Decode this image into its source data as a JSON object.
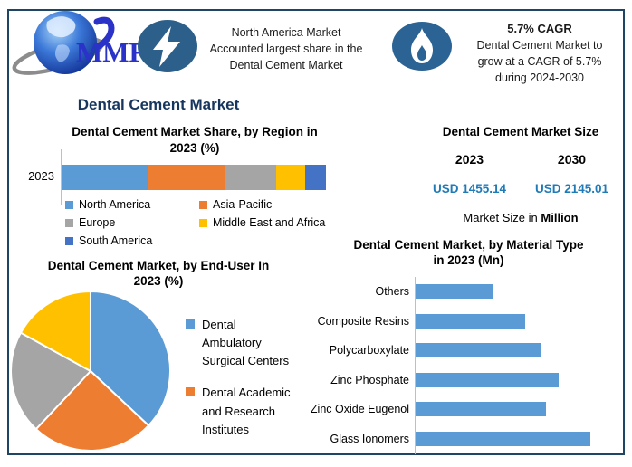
{
  "palette": {
    "blue": "#5B9BD5",
    "orange": "#ED7D31",
    "gray": "#A5A5A5",
    "yellow": "#FFC000",
    "dark_blue": "#4472C4",
    "frame": "#1F4564",
    "navy_title": "#17365D",
    "icon_bolt_bg": "#2C5F8A",
    "icon_flame_bg": "#2B6394"
  },
  "header": {
    "logo": {
      "text": "MMR"
    },
    "callout_market_share": {
      "icon": "lightning-icon",
      "lines": [
        "North America Market",
        "Accounted largest share in the",
        "Dental Cement Market"
      ]
    },
    "callout_cagr": {
      "icon": "flame-icon",
      "title": "5.7% CAGR",
      "lines": [
        "Dental Cement Market to",
        "grow at a CAGR of 5.7%",
        "during 2024-2030"
      ]
    }
  },
  "page_title": "Dental Cement Market",
  "market_size_panel": {
    "title": "Dental Cement Market Size",
    "columns": [
      {
        "year": "2023",
        "value": "USD 1455.14"
      },
      {
        "year": "2030",
        "value": "USD 2145.01"
      }
    ],
    "footnote_text": "Market Size in",
    "footnote_bold": "Million",
    "value_color": "#1F7AB8"
  },
  "chart_data": [
    {
      "id": "region_share",
      "type": "bar",
      "subtype": "stacked-horizontal",
      "title": "Dental Cement Market Share, by Region in 2023 (%)",
      "title_lines": [
        "Dental Cement Market Share, by Region in",
        "2023 (%)"
      ],
      "categories": [
        "2023"
      ],
      "series": [
        {
          "name": "North America",
          "color": "#5B9BD5",
          "values": [
            33
          ]
        },
        {
          "name": "Asia-Pacific",
          "color": "#ED7D31",
          "values": [
            29
          ]
        },
        {
          "name": "Europe",
          "color": "#A5A5A5",
          "values": [
            19
          ]
        },
        {
          "name": "Middle East and Africa",
          "color": "#FFC000",
          "values": [
            11
          ]
        },
        {
          "name": "South America",
          "color": "#4472C4",
          "values": [
            8
          ]
        }
      ],
      "xlim": [
        0,
        100
      ],
      "legend_position": "bottom",
      "grid": false
    },
    {
      "id": "end_user_share",
      "type": "pie",
      "title": "Dental Cement Market, by End-User In 2023 (%)",
      "title_lines": [
        "Dental Cement Market, by End-User In",
        "2023 (%)"
      ],
      "start_angle_deg": 0,
      "slices": [
        {
          "name": "Dental Ambulatory Surgical Centers",
          "legend_lines": [
            "Dental",
            "Ambulatory",
            "Surgical Centers"
          ],
          "color": "#5B9BD5",
          "value": 37
        },
        {
          "name": "Dental Academic and Research Institutes",
          "legend_lines": [
            "Dental Academic",
            "and Research",
            "Institutes"
          ],
          "color": "#ED7D31",
          "value": 25
        },
        {
          "name": "",
          "color": "#A5A5A5",
          "value": 21
        },
        {
          "name": "",
          "color": "#FFC000",
          "value": 17
        }
      ],
      "legend_position": "right"
    },
    {
      "id": "material_type",
      "type": "bar",
      "subtype": "horizontal",
      "title": "Dental Cement Market, by Material Type in 2023 (Mn)",
      "title_lines": [
        "Dental Cement Market, by Material Type",
        "in 2023 (Mn)"
      ],
      "categories": [
        "Others",
        "Composite Resins",
        "Polycarboxylate",
        "Zinc Phosphate",
        "Zinc Oxide Eugenol",
        "Glass Ionomers"
      ],
      "values": [
        44,
        63,
        72,
        82,
        75,
        100
      ],
      "xlim": [
        0,
        120
      ],
      "xlabel": "",
      "ylabel": "",
      "bar_color": "#5B9BD5",
      "grid": false
    }
  ]
}
